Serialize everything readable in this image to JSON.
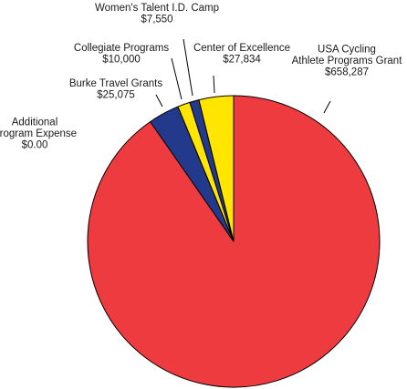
{
  "chart_data": {
    "type": "pie",
    "title": "",
    "start": "12 o'clock",
    "direction": "clockwise",
    "slices": [
      {
        "name": "USA Cycling Athlete Programs Grant",
        "label_lines": [
          "USA Cycling",
          "Athlete Programs Grant"
        ],
        "value": 658287,
        "value_label": "$658,287",
        "color": "#ee3b3f"
      },
      {
        "name": "Additional Program Expense",
        "label_lines": [
          "Additional",
          "Program Expense"
        ],
        "value": 0,
        "value_label": "$0.00",
        "color": "#ee3b3f"
      },
      {
        "name": "Burke Travel Grants",
        "label_lines": [
          "Burke Travel Grants"
        ],
        "value": 25075,
        "value_label": "$25,075",
        "color": "#22398c"
      },
      {
        "name": "Collegiate Programs",
        "label_lines": [
          "Collegiate Programs"
        ],
        "value": 10000,
        "value_label": "$10,000",
        "color": "#ffe500"
      },
      {
        "name": "Women's Talent I.D. Camp",
        "label_lines": [
          "Women's Talent I.D. Camp"
        ],
        "value": 7550,
        "value_label": "$7,550",
        "color": "#22398c"
      },
      {
        "name": "Center of Excellence",
        "label_lines": [
          "Center of Excellence"
        ],
        "value": 27834,
        "value_label": "$27,834",
        "color": "#ffe500"
      }
    ]
  }
}
